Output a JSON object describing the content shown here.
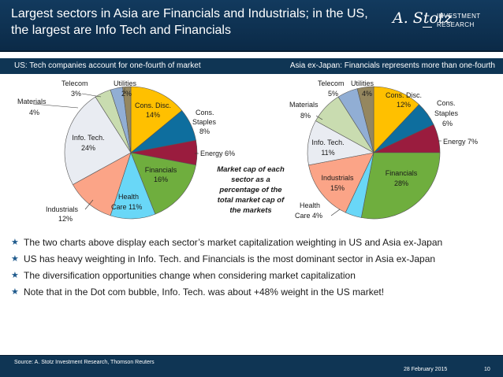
{
  "header": {
    "title": "Largest sectors in Asia are Financials and Industrials; in the US, the largest are Info Tech and Financials",
    "logo_script": "A. Stotz",
    "logo_line1": "INVESTMENT",
    "logo_line2": "RESEARCH"
  },
  "subheader": {
    "left": "US:  Tech companies account for one-fourth of market",
    "right": "Asia ex-Japan: Financials represents more than one-fourth"
  },
  "colors": {
    "Cons. Disc.": "#ffc000",
    "Cons. Staples": "#0e6e9e",
    "Energy": "#9a1c3e",
    "Financials": "#6fae3e",
    "Health Care": "#69d7f7",
    "Industrials": "#fba487",
    "Info. Tech.": "#e9ecf2",
    "Materials": "#c9dcb0",
    "Telecom": "#91aed4",
    "Utilities": "#95875f"
  },
  "chart_data": [
    {
      "type": "pie",
      "title": "US:  Tech companies account for one-fourth of market",
      "categories": [
        "Cons. Disc.",
        "Cons. Staples",
        "Energy",
        "Financials",
        "Health Care",
        "Industrials",
        "Info. Tech.",
        "Materials",
        "Telecom",
        "Utilities"
      ],
      "values": [
        14,
        8,
        6,
        16,
        11,
        12,
        24,
        4,
        3,
        2
      ],
      "unit": "%"
    },
    {
      "type": "pie",
      "title": "Asia ex-Japan: Financials represents more than one-fourth",
      "categories": [
        "Cons. Disc.",
        "Cons. Staples",
        "Energy",
        "Financials",
        "Health Care",
        "Industrials",
        "Info. Tech.",
        "Materials",
        "Telecom",
        "Utilities"
      ],
      "values": [
        12,
        6,
        7,
        28,
        4,
        15,
        11,
        8,
        5,
        4
      ],
      "unit": "%"
    }
  ],
  "labels": {
    "us": {
      "cons_disc_1": "Cons. Disc.",
      "cons_disc_2": "14%",
      "cons_staples_1": "Cons.",
      "cons_staples_2": "Staples",
      "cons_staples_3": "8%",
      "energy": "Energy  6%",
      "financials_1": "Financials",
      "financials_2": "16%",
      "health_care_1": "Health",
      "health_care_2": "Care  11%",
      "industrials_1": "Industrials",
      "industrials_2": "12%",
      "info_tech_1": "Info. Tech.",
      "info_tech_2": "24%",
      "materials_1": "Materials",
      "materials_2": "4%",
      "telecom_1": "Telecom",
      "telecom_2": "3%",
      "utilities_1": "Utilities",
      "utilities_2": "2%"
    },
    "asia": {
      "cons_disc_1": "Cons. Disc.",
      "cons_disc_2": "12%",
      "cons_staples_1": "Cons.",
      "cons_staples_2": "Staples",
      "cons_staples_3": "6%",
      "energy": "Energy  7%",
      "financials_1": "Financials",
      "financials_2": "28%",
      "health_care_1": "Health",
      "health_care_2": "Care  4%",
      "industrials_1": "Industrials",
      "industrials_2": "15%",
      "info_tech_1": "Info. Tech.",
      "info_tech_2": "11%",
      "materials_1": "Materials",
      "materials_2": "8%",
      "telecom_1": "Telecom",
      "telecom_2": "5%",
      "utilities_1": "Utilities",
      "utilities_2": "4%"
    },
    "center_note": [
      "Market cap of each",
      "sector as a",
      "percentage of the",
      "total market cap of",
      "the markets"
    ]
  },
  "bullets": [
    "The two charts above display each sector’s market capitalization weighting in US and Asia ex-Japan",
    "US has heavy weighting in Info. Tech. and Financials is the most dominant sector in Asia ex-Japan",
    "The diversification opportunities change when considering market capitalization",
    "Note that in the Dot com bubble, Info. Tech. was about +48% weight in the US market!"
  ],
  "bullet_symbol": "★",
  "footer": {
    "source": "Source: A. Stotz Investment Research, Thomson Reuters",
    "date": "28 February 2015",
    "page": "10"
  }
}
